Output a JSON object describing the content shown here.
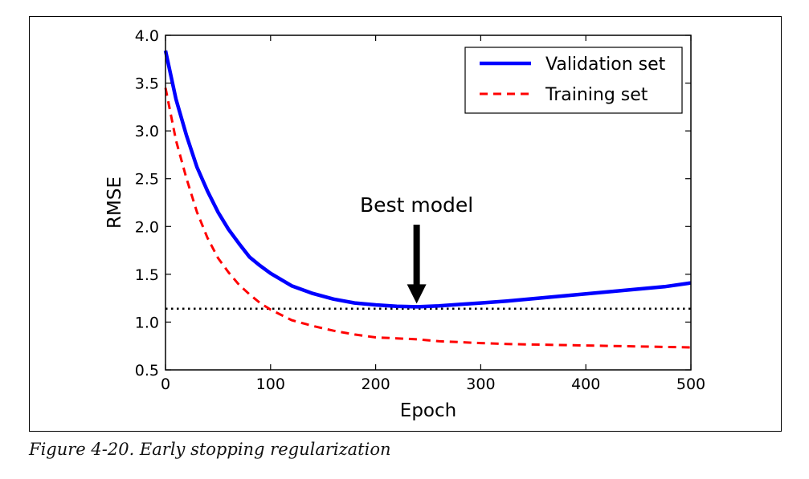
{
  "figure": {
    "caption": "Figure 4-20. Early stopping regularization"
  },
  "chart_data": {
    "type": "line",
    "xlabel": "Epoch",
    "ylabel": "RMSE",
    "xlim": [
      0,
      500
    ],
    "ylim": [
      0.5,
      4.0
    ],
    "xticks": [
      "0",
      "100",
      "200",
      "300",
      "400",
      "500"
    ],
    "yticks": [
      "0.5",
      "1.0",
      "1.5",
      "2.0",
      "2.5",
      "3.0",
      "3.5",
      "4.0"
    ],
    "grid": false,
    "legend_position": "top-right",
    "series": [
      {
        "name": "Validation set",
        "color": "#0000ff",
        "style": "solid",
        "x": [
          0,
          10,
          20,
          30,
          40,
          50,
          60,
          70,
          80,
          90,
          100,
          120,
          140,
          160,
          180,
          200,
          220,
          240,
          260,
          280,
          300,
          325,
          350,
          375,
          400,
          425,
          450,
          475,
          500
        ],
        "y": [
          3.84,
          3.33,
          2.95,
          2.62,
          2.37,
          2.15,
          1.97,
          1.82,
          1.68,
          1.59,
          1.51,
          1.38,
          1.3,
          1.24,
          1.2,
          1.18,
          1.165,
          1.16,
          1.17,
          1.185,
          1.2,
          1.22,
          1.245,
          1.27,
          1.295,
          1.32,
          1.345,
          1.37,
          1.41
        ]
      },
      {
        "name": "Training set",
        "color": "#ff0000",
        "style": "dashed",
        "x": [
          0,
          10,
          20,
          30,
          40,
          50,
          60,
          70,
          80,
          90,
          100,
          120,
          140,
          160,
          180,
          200,
          220,
          240,
          260,
          280,
          300,
          325,
          350,
          375,
          400,
          425,
          450,
          475,
          500
        ],
        "y": [
          3.45,
          2.9,
          2.5,
          2.15,
          1.88,
          1.67,
          1.52,
          1.39,
          1.29,
          1.2,
          1.13,
          1.02,
          0.96,
          0.91,
          0.87,
          0.84,
          0.83,
          0.82,
          0.8,
          0.79,
          0.78,
          0.77,
          0.765,
          0.76,
          0.755,
          0.75,
          0.745,
          0.74,
          0.735
        ]
      }
    ],
    "reference_line": {
      "y": 1.14,
      "style": "dotted",
      "color": "#000000"
    },
    "annotation": {
      "text": "Best model",
      "x": 239,
      "y": 1.16
    }
  }
}
